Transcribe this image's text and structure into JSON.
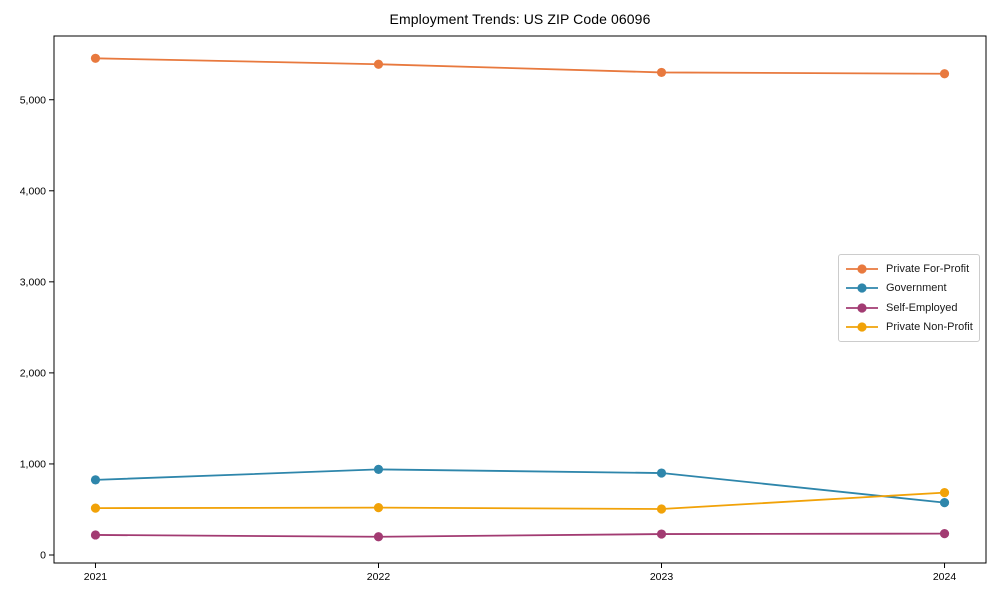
{
  "chart_data": {
    "type": "line",
    "title": "Employment Trends: US ZIP Code 06096",
    "x": [
      2021,
      2022,
      2023,
      2024
    ],
    "xtick_labels": [
      "2021",
      "2022",
      "2023",
      "2024"
    ],
    "series": [
      {
        "name": "Private For-Profit",
        "color": "#E8793E",
        "values": [
          5455,
          5390,
          5300,
          5285
        ]
      },
      {
        "name": "Government",
        "color": "#2E86AB",
        "values": [
          825,
          940,
          900,
          575
        ]
      },
      {
        "name": "Self-Employed",
        "color": "#A23B72",
        "values": [
          220,
          200,
          230,
          235
        ]
      },
      {
        "name": "Private Non-Profit",
        "color": "#F1A208",
        "values": [
          515,
          520,
          505,
          685
        ]
      }
    ],
    "xlabel": "",
    "ylabel": "",
    "ylim": [
      -88,
      5700
    ],
    "yticks": [
      0,
      1000,
      2000,
      3000,
      4000,
      5000
    ],
    "ytick_labels": [
      "0",
      "1,000",
      "2,000",
      "3,000",
      "4,000",
      "5,000"
    ],
    "grid": false,
    "legend": {
      "position": "right-middle",
      "border": true
    },
    "marker": "circle",
    "line_width": 1.8,
    "marker_radius": 4.6,
    "axis_color": "#000000"
  }
}
